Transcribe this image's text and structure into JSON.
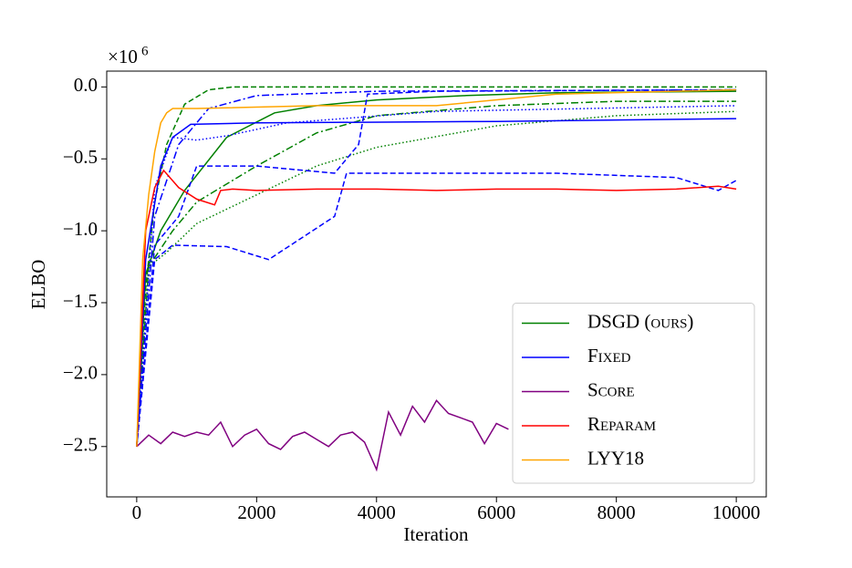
{
  "chart_data": {
    "type": "line",
    "x_label": "Iteration",
    "y_label": "ELBO",
    "offset_label": "×10",
    "offset_exponent": "6",
    "xlim": [
      -500,
      10500
    ],
    "ylim": [
      -2.85,
      0.11
    ],
    "xticks": [
      0,
      2000,
      4000,
      6000,
      8000,
      10000
    ],
    "yticks": [
      {
        "value": 0,
        "label": "0.0"
      },
      {
        "value": -0.5,
        "label": "−0.5"
      },
      {
        "value": -1.0,
        "label": "−1.0"
      },
      {
        "value": -1.5,
        "label": "−1.5"
      },
      {
        "value": -2.0,
        "label": "−2.0"
      },
      {
        "value": -2.5,
        "label": "−2.5"
      }
    ],
    "legend": "lower right",
    "series": [
      {
        "name": "DSGD (ours)",
        "color": "#008000",
        "dash": "solid",
        "x": [
          0,
          150,
          400,
          800,
          1500,
          2300,
          3000,
          4000,
          5500,
          7000,
          10000
        ],
        "values": [
          -2.5,
          -1.3,
          -1.0,
          -0.72,
          -0.35,
          -0.18,
          -0.13,
          -0.09,
          -0.06,
          -0.04,
          -0.03
        ]
      },
      {
        "color": "#008000",
        "dash": "dashed",
        "x": [
          0,
          150,
          300,
          500,
          800,
          1200,
          1600,
          10000
        ],
        "values": [
          -2.5,
          -1.4,
          -0.8,
          -0.4,
          -0.12,
          -0.02,
          0,
          0
        ]
      },
      {
        "color": "#008000",
        "dash": "dashdot",
        "x": [
          0,
          200,
          600,
          1000,
          2000,
          3000,
          4000,
          6000,
          8000,
          10000
        ],
        "values": [
          -2.5,
          -1.25,
          -1.0,
          -0.8,
          -0.55,
          -0.32,
          -0.2,
          -0.13,
          -0.1,
          -0.1
        ]
      },
      {
        "color": "#008000",
        "dash": "dotted",
        "x": [
          0,
          200,
          500,
          1000,
          2000,
          3000,
          4000,
          6000,
          8000,
          10000
        ],
        "values": [
          -2.5,
          -1.25,
          -1.15,
          -0.95,
          -0.75,
          -0.55,
          -0.42,
          -0.27,
          -0.2,
          -0.17
        ]
      },
      {
        "name": "Fixed",
        "color": "#0000ff",
        "dash": "solid",
        "x": [
          0,
          150,
          400,
          600,
          900,
          2000,
          6000,
          10000
        ],
        "values": [
          -2.5,
          -1.2,
          -0.55,
          -0.35,
          -0.26,
          -0.25,
          -0.24,
          -0.22
        ]
      },
      {
        "color": "#0000ff",
        "dash": "dashed",
        "x": [
          0,
          300,
          600,
          1500,
          2200,
          3300,
          3500,
          7000,
          9000,
          9700,
          10000
        ],
        "values": [
          -2.5,
          -1.2,
          -1.1,
          -1.11,
          -1.2,
          -0.9,
          -0.6,
          -0.6,
          -0.63,
          -0.72,
          -0.65
        ]
      },
      {
        "color": "#0000ff",
        "dash": "dashed",
        "x": [
          0,
          300,
          700,
          1000,
          2000,
          3300,
          3700,
          3850,
          5000,
          10000
        ],
        "values": [
          -2.5,
          -1.1,
          -0.9,
          -0.55,
          -0.55,
          -0.6,
          -0.4,
          -0.05,
          -0.03,
          -0.02
        ]
      },
      {
        "color": "#0000ff",
        "dash": "dashdot",
        "x": [
          0,
          300,
          700,
          1200,
          2000,
          4000,
          10000
        ],
        "values": [
          -2.5,
          -0.9,
          -0.4,
          -0.15,
          -0.06,
          -0.03,
          -0.02
        ]
      },
      {
        "color": "#0000ff",
        "dash": "dotted",
        "x": [
          0,
          300,
          600,
          1000,
          1500,
          2500,
          5000,
          10000
        ],
        "values": [
          -2.5,
          -0.7,
          -0.35,
          -0.37,
          -0.34,
          -0.25,
          -0.17,
          -0.13
        ]
      },
      {
        "name": "Score",
        "color": "#800080",
        "dash": "solid",
        "x": [
          0,
          200,
          400,
          600,
          800,
          1000,
          1200,
          1400,
          1600,
          1800,
          2000,
          2200,
          2400,
          2600,
          2800,
          3000,
          3200,
          3400,
          3600,
          3800,
          4000,
          4200,
          4400,
          4600,
          4800,
          5000,
          5200,
          5400,
          5600,
          5800,
          6000,
          6200
        ],
        "values": [
          -2.5,
          -2.42,
          -2.48,
          -2.4,
          -2.43,
          -2.4,
          -2.42,
          -2.33,
          -2.5,
          -2.42,
          -2.38,
          -2.48,
          -2.52,
          -2.43,
          -2.4,
          -2.45,
          -2.5,
          -2.42,
          -2.4,
          -2.47,
          -2.66,
          -2.26,
          -2.42,
          -2.22,
          -2.33,
          -2.18,
          -2.27,
          -2.3,
          -2.33,
          -2.48,
          -2.34,
          -2.38
        ]
      },
      {
        "name": "Reparam",
        "color": "#ff0000",
        "dash": "solid",
        "x": [
          0,
          150,
          300,
          450,
          700,
          1000,
          1300,
          1400,
          1600,
          2000,
          3000,
          4000,
          5000,
          6000,
          7000,
          8000,
          9000,
          9700,
          10000
        ],
        "values": [
          -2.5,
          -1.0,
          -0.7,
          -0.58,
          -0.7,
          -0.78,
          -0.82,
          -0.72,
          -0.71,
          -0.72,
          -0.71,
          -0.71,
          -0.72,
          -0.71,
          -0.71,
          -0.72,
          -0.71,
          -0.69,
          -0.71
        ]
      },
      {
        "name": "LYY18",
        "color": "#ffa500",
        "dash": "solid",
        "x": [
          0,
          100,
          200,
          300,
          400,
          500,
          600,
          1000,
          3000,
          5000,
          7000,
          10000
        ],
        "values": [
          -2.5,
          -1.2,
          -0.75,
          -0.45,
          -0.25,
          -0.18,
          -0.15,
          -0.15,
          -0.13,
          -0.13,
          -0.05,
          -0.02
        ]
      }
    ]
  }
}
